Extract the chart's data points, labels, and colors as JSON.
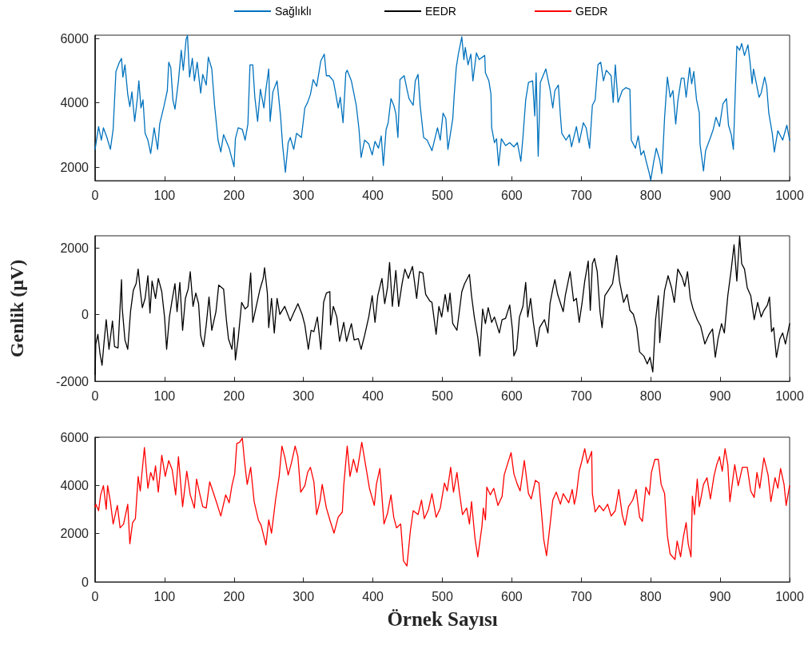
{
  "chart_data": [
    {
      "type": "line",
      "legend": "top",
      "grid": false,
      "marker": "none",
      "line_style": "solid",
      "xlim": [
        0,
        1000
      ],
      "xticks": [
        0,
        100,
        200,
        300,
        400,
        500,
        600,
        700,
        800,
        900,
        1000
      ],
      "ylim": [
        1580,
        6100
      ],
      "yticks": [
        2000,
        4000,
        6000
      ],
      "x": [
        0,
        5,
        9,
        12,
        17,
        22,
        26,
        30,
        35,
        38,
        40,
        43,
        47,
        50,
        53,
        57,
        61,
        63,
        66,
        69,
        72,
        76,
        80,
        85,
        90,
        93,
        99,
        104,
        106,
        109,
        112,
        115,
        120,
        124,
        127,
        131,
        133,
        136,
        140,
        143,
        147,
        152,
        155,
        160,
        163,
        168,
        172,
        177,
        181,
        185,
        193,
        200,
        202,
        206,
        212,
        216,
        220,
        223,
        227,
        230,
        234,
        238,
        243,
        246,
        250,
        252,
        256,
        262,
        267,
        270,
        274,
        278,
        281,
        286,
        290,
        297,
        302,
        306,
        310,
        314,
        319,
        325,
        330,
        333,
        337,
        343,
        346,
        350,
        353,
        357,
        361,
        363,
        369,
        376,
        380,
        383,
        388,
        394,
        399,
        403,
        408,
        412,
        415,
        419,
        422,
        426,
        430,
        433,
        436,
        439,
        445,
        449,
        452,
        458,
        461,
        465,
        468,
        473,
        478,
        485,
        493,
        497,
        501,
        505,
        508,
        512,
        515,
        517,
        520,
        523,
        528,
        531,
        533,
        537,
        541,
        544,
        549,
        553,
        561,
        562,
        567,
        570,
        571,
        575,
        578,
        581,
        585,
        591,
        597,
        603,
        608,
        613,
        616,
        620,
        624,
        630,
        633,
        635,
        638,
        641,
        649,
        655,
        659,
        662,
        667,
        670,
        672,
        678,
        683,
        686,
        693,
        697,
        703,
        707,
        712,
        716,
        720,
        724,
        728,
        732,
        736,
        743,
        746,
        749,
        753,
        759,
        764,
        770,
        772,
        778,
        782,
        786,
        790,
        793,
        798,
        800,
        804,
        808,
        813,
        816,
        820,
        824,
        828,
        832,
        836,
        839,
        844,
        848,
        851,
        856,
        859,
        862,
        866,
        870,
        871,
        876,
        879,
        886,
        890,
        894,
        899,
        904,
        909,
        912,
        916,
        919,
        924,
        928,
        931,
        935,
        940,
        943,
        946,
        948,
        951,
        956,
        959,
        964,
        967,
        970,
        975,
        978,
        983,
        990,
        996,
        1000
      ],
      "series": [
        {
          "name": "Sağlıklı",
          "color": "#0072bd",
          "values": [
            2550,
            3260,
            2840,
            3220,
            2920,
            2550,
            3180,
            4970,
            5260,
            5380,
            4800,
            5180,
            4260,
            3880,
            4340,
            3420,
            4170,
            4680,
            3840,
            4090,
            3050,
            2840,
            2420,
            3220,
            2550,
            3340,
            3880,
            4380,
            5260,
            5090,
            4090,
            3800,
            4680,
            5630,
            5010,
            5970,
            6090,
            4800,
            5380,
            4680,
            5260,
            4300,
            4880,
            4550,
            5420,
            5050,
            3920,
            2840,
            2470,
            3010,
            2590,
            2010,
            2880,
            3220,
            3170,
            2840,
            3340,
            5180,
            5180,
            4170,
            3420,
            4420,
            3840,
            4420,
            5050,
            3420,
            4340,
            4680,
            3590,
            2670,
            1840,
            2760,
            2920,
            2550,
            3050,
            2920,
            3840,
            4010,
            4260,
            4720,
            4510,
            5300,
            5510,
            4840,
            4840,
            4680,
            4340,
            3840,
            4170,
            3380,
            4930,
            5010,
            4680,
            3920,
            3170,
            2300,
            2840,
            2720,
            2380,
            2800,
            2590,
            2970,
            2050,
            3170,
            3380,
            4130,
            3920,
            3670,
            2920,
            4720,
            4840,
            4420,
            4130,
            3920,
            4680,
            4880,
            3920,
            2920,
            2840,
            2510,
            3220,
            2840,
            3680,
            3510,
            2550,
            3090,
            3510,
            4220,
            5090,
            5510,
            6050,
            5340,
            5720,
            5180,
            5510,
            4680,
            5550,
            5340,
            5470,
            4930,
            4680,
            4260,
            3220,
            2760,
            2880,
            2050,
            2880,
            2670,
            2760,
            2630,
            2760,
            2180,
            2920,
            4090,
            4630,
            4680,
            3590,
            4930,
            2340,
            4630,
            5050,
            4420,
            3840,
            4380,
            4550,
            3590,
            3050,
            2840,
            3010,
            2630,
            3260,
            2760,
            3380,
            3220,
            2590,
            3920,
            4090,
            5180,
            5260,
            4680,
            5010,
            4840,
            4010,
            5180,
            4010,
            4380,
            4470,
            4420,
            2840,
            2590,
            2970,
            2380,
            2510,
            2220,
            1800,
            1590,
            2130,
            2590,
            2220,
            1800,
            3550,
            4800,
            4170,
            4380,
            3340,
            4050,
            4760,
            4760,
            4170,
            5090,
            4590,
            4970,
            4090,
            3680,
            2720,
            1880,
            2510,
            2920,
            3170,
            3550,
            3260,
            3970,
            4130,
            3300,
            3010,
            2550,
            5760,
            5630,
            5840,
            5470,
            5800,
            5260,
            4590,
            5050,
            4720,
            4170,
            4300,
            4800,
            4510,
            3680,
            3050,
            2470,
            3130,
            2840,
            3300,
            2840
          ]
        }
      ]
    },
    {
      "type": "line",
      "legend": "top",
      "grid": false,
      "marker": "none",
      "line_style": "solid",
      "ylabel": "Genlik (μV)",
      "xlim": [
        0,
        1000
      ],
      "xticks": [
        0,
        100,
        200,
        300,
        400,
        500,
        600,
        700,
        800,
        900,
        1000
      ],
      "ylim": [
        -2000,
        2370
      ],
      "yticks": [
        -2000,
        0,
        2000
      ],
      "x": [
        0,
        1,
        4,
        7,
        10,
        13,
        16,
        20,
        25,
        28,
        33,
        38,
        39,
        43,
        47,
        51,
        55,
        59,
        62,
        65,
        68,
        72,
        76,
        79,
        82,
        87,
        91,
        96,
        100,
        103,
        107,
        111,
        115,
        118,
        122,
        126,
        130,
        134,
        137,
        141,
        145,
        149,
        152,
        156,
        160,
        164,
        168,
        174,
        178,
        185,
        189,
        192,
        197,
        200,
        202,
        206,
        211,
        216,
        220,
        224,
        227,
        232,
        237,
        242,
        244,
        248,
        250,
        254,
        258,
        262,
        266,
        273,
        281,
        285,
        292,
        298,
        302,
        307,
        311,
        315,
        320,
        325,
        329,
        333,
        338,
        339,
        343,
        348,
        352,
        358,
        362,
        369,
        373,
        379,
        383,
        388,
        394,
        399,
        403,
        407,
        413,
        417,
        421,
        424,
        428,
        433,
        437,
        442,
        446,
        451,
        457,
        463,
        467,
        472,
        476,
        482,
        485,
        491,
        495,
        499,
        504,
        508,
        511,
        515,
        521,
        528,
        532,
        539,
        542,
        546,
        551,
        554,
        558,
        562,
        566,
        571,
        575,
        582,
        586,
        591,
        597,
        601,
        603,
        607,
        611,
        616,
        620,
        623,
        627,
        631,
        636,
        640,
        647,
        652,
        655,
        659,
        662,
        666,
        674,
        677,
        684,
        689,
        693,
        697,
        701,
        705,
        710,
        713,
        716,
        719,
        723,
        727,
        730,
        734,
        739,
        745,
        747,
        751,
        755,
        761,
        766,
        770,
        775,
        780,
        784,
        790,
        795,
        799,
        803,
        807,
        811,
        813,
        817,
        820,
        825,
        830,
        834,
        839,
        845,
        849,
        853,
        857,
        861,
        867,
        872,
        878,
        884,
        889,
        893,
        897,
        902,
        906,
        911,
        916,
        920,
        924,
        928,
        931,
        935,
        939,
        944,
        949,
        954,
        959,
        963,
        968,
        971,
        974,
        977,
        981,
        986,
        990,
        994,
        1000
      ],
      "series": [
        {
          "name": "EEDR",
          "color": "#000000",
          "values": [
            -1800,
            -880,
            -590,
            -1160,
            -1520,
            -800,
            -150,
            -1040,
            -190,
            -960,
            -1000,
            1050,
            210,
            -760,
            -1040,
            90,
            730,
            930,
            1370,
            730,
            210,
            490,
            1170,
            50,
            1010,
            490,
            1090,
            690,
            -70,
            -1040,
            -70,
            450,
            930,
            90,
            970,
            -470,
            490,
            770,
            1290,
            250,
            650,
            330,
            -630,
            -960,
            -310,
            530,
            -470,
            90,
            890,
            770,
            -150,
            -720,
            -1040,
            -390,
            -1360,
            -720,
            370,
            170,
            250,
            1250,
            -230,
            250,
            730,
            1090,
            1410,
            650,
            -390,
            490,
            -550,
            490,
            10,
            250,
            -190,
            10,
            330,
            10,
            -310,
            -1040,
            -470,
            -510,
            -70,
            -1040,
            370,
            650,
            690,
            -310,
            250,
            -70,
            -800,
            -230,
            -800,
            -270,
            -760,
            -720,
            -1040,
            -630,
            -70,
            570,
            -230,
            570,
            1090,
            330,
            810,
            1570,
            250,
            1330,
            250,
            930,
            1370,
            1090,
            1450,
            490,
            1290,
            1250,
            610,
            410,
            370,
            -590,
            250,
            -70,
            610,
            90,
            650,
            -270,
            -470,
            690,
            930,
            1210,
            570,
            -70,
            -680,
            -1240,
            170,
            -270,
            210,
            -230,
            -70,
            -550,
            -150,
            -110,
            290,
            -470,
            -1240,
            -1040,
            -70,
            250,
            970,
            -70,
            490,
            -230,
            -960,
            -390,
            -150,
            -550,
            330,
            770,
            1050,
            610,
            90,
            570,
            1290,
            410,
            490,
            -230,
            330,
            1010,
            1610,
            130,
            1530,
            1690,
            1290,
            90,
            -390,
            570,
            730,
            930,
            1210,
            1780,
            1010,
            370,
            610,
            130,
            10,
            -390,
            -1120,
            -1240,
            -1480,
            -1280,
            -1720,
            -150,
            570,
            -840,
            90,
            730,
            1170,
            810,
            370,
            1370,
            1130,
            850,
            1290,
            490,
            170,
            -150,
            -350,
            -880,
            -590,
            -430,
            -1280,
            -720,
            -270,
            -550,
            570,
            1370,
            2100,
            1010,
            2360,
            1530,
            1370,
            810,
            570,
            -150,
            370,
            -70,
            130,
            290,
            530,
            -510,
            -390,
            -1280,
            -720,
            -550,
            -880,
            -270
          ]
        }
      ]
    },
    {
      "type": "line",
      "legend": "top",
      "grid": false,
      "marker": "none",
      "line_style": "solid",
      "xlabel": "Örnek Sayısı",
      "xlim": [
        0,
        1000
      ],
      "xticks": [
        0,
        100,
        200,
        300,
        400,
        500,
        600,
        700,
        800,
        900,
        1000
      ],
      "ylim": [
        0,
        6000
      ],
      "yticks": [
        0,
        2000,
        4000,
        6000
      ],
      "x": [
        0,
        1,
        5,
        8,
        12,
        16,
        18,
        22,
        26,
        32,
        36,
        41,
        47,
        50,
        54,
        58,
        62,
        65,
        71,
        76,
        80,
        84,
        87,
        91,
        96,
        101,
        106,
        111,
        116,
        120,
        126,
        132,
        137,
        143,
        146,
        151,
        155,
        160,
        165,
        170,
        175,
        181,
        188,
        193,
        197,
        201,
        204,
        208,
        212,
        215,
        219,
        224,
        229,
        235,
        239,
        246,
        250,
        254,
        260,
        265,
        269,
        273,
        278,
        283,
        288,
        292,
        296,
        302,
        306,
        310,
        315,
        319,
        324,
        327,
        333,
        338,
        344,
        350,
        356,
        358,
        363,
        367,
        372,
        377,
        384,
        390,
        395,
        402,
        405,
        410,
        416,
        421,
        426,
        430,
        434,
        440,
        444,
        449,
        454,
        458,
        465,
        470,
        474,
        480,
        485,
        491,
        497,
        503,
        507,
        512,
        516,
        521,
        524,
        529,
        535,
        539,
        542,
        547,
        551,
        557,
        559,
        562,
        564,
        569,
        574,
        580,
        586,
        589,
        593,
        599,
        603,
        608,
        612,
        618,
        624,
        628,
        634,
        639,
        643,
        646,
        650,
        655,
        659,
        664,
        670,
        674,
        682,
        687,
        690,
        693,
        697,
        701,
        705,
        709,
        715,
        716,
        720,
        726,
        732,
        738,
        743,
        749,
        754,
        759,
        763,
        768,
        774,
        779,
        784,
        788,
        793,
        798,
        801,
        806,
        811,
        815,
        820,
        824,
        828,
        835,
        838,
        843,
        847,
        851,
        854,
        858,
        860,
        863,
        867,
        870,
        876,
        881,
        886,
        891,
        895,
        899,
        903,
        907,
        911,
        914,
        921,
        926,
        932,
        939,
        944,
        949,
        953,
        957,
        963,
        969,
        973,
        979,
        983,
        987,
        992,
        995,
        1000
      ],
      "series": [
        {
          "name": "GEDR",
          "color": "#ff0000",
          "values": [
            3100,
            3220,
            2950,
            3610,
            3990,
            3010,
            3990,
            3330,
            2400,
            3170,
            2240,
            2400,
            3220,
            1580,
            2460,
            2620,
            4370,
            3770,
            5570,
            3880,
            4540,
            4210,
            4810,
            3720,
            5250,
            4370,
            5030,
            4650,
            3610,
            5190,
            3120,
            4590,
            3610,
            3060,
            4260,
            3610,
            3120,
            3060,
            4150,
            3720,
            3280,
            2730,
            3610,
            3280,
            3990,
            4480,
            5740,
            5790,
            5960,
            5030,
            4040,
            4750,
            3330,
            2570,
            2350,
            1530,
            2570,
            2020,
            3440,
            4370,
            5630,
            5190,
            4430,
            4970,
            5630,
            5190,
            3720,
            3990,
            4540,
            4750,
            4150,
            2790,
            3390,
            4040,
            3060,
            2570,
            2020,
            2680,
            2900,
            3990,
            5630,
            4370,
            5080,
            4540,
            5790,
            4750,
            3880,
            3170,
            4040,
            4700,
            2400,
            2840,
            3610,
            2680,
            2240,
            2400,
            870,
            660,
            2130,
            2950,
            2790,
            3390,
            2620,
            3010,
            3660,
            2680,
            3060,
            4100,
            3770,
            4750,
            3720,
            4540,
            3830,
            2790,
            3060,
            2400,
            3330,
            1800,
            1040,
            2300,
            3060,
            2570,
            3930,
            3610,
            3880,
            3170,
            3550,
            4430,
            4810,
            5360,
            4480,
            4040,
            3770,
            5030,
            3660,
            3440,
            4210,
            4100,
            2790,
            1750,
            1090,
            2350,
            3390,
            3720,
            3220,
            3660,
            3280,
            3830,
            3220,
            3610,
            4590,
            5030,
            5520,
            4920,
            5410,
            3660,
            2900,
            3170,
            2950,
            3220,
            2730,
            2950,
            3830,
            2790,
            2350,
            3120,
            3390,
            3830,
            2680,
            2510,
            3930,
            3610,
            4540,
            5080,
            5080,
            4040,
            3660,
            1910,
            1150,
            930,
            1690,
            1040,
            1860,
            2460,
            1580,
            1040,
            3550,
            2790,
            4260,
            3120,
            4040,
            4320,
            3440,
            4370,
            4860,
            5190,
            4590,
            5520,
            4860,
            3330,
            4860,
            3990,
            4750,
            4750,
            3770,
            3500,
            4540,
            3880,
            5140,
            4430,
            3330,
            4320,
            3880,
            4700,
            4040,
            3170,
            3990
          ]
        }
      ]
    }
  ]
}
